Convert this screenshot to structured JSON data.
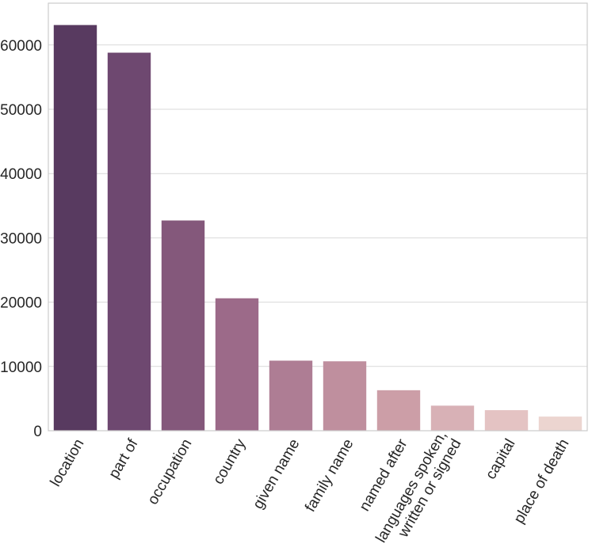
{
  "chart_data": {
    "type": "bar",
    "title": "",
    "xlabel": "",
    "ylabel": "",
    "categories": [
      [
        "location"
      ],
      [
        "part of"
      ],
      [
        "occupation"
      ],
      [
        "country"
      ],
      [
        "given name"
      ],
      [
        "family name"
      ],
      [
        "named after"
      ],
      [
        "languages spoken,",
        "written or signed"
      ],
      [
        "capital"
      ],
      [
        "place of death"
      ]
    ],
    "values": [
      63100,
      58800,
      32700,
      20600,
      10900,
      10800,
      6300,
      3900,
      3200,
      2200
    ],
    "colors": [
      "#583a60",
      "#6e4870",
      "#84587b",
      "#9c6a89",
      "#ae7d94",
      "#bf8f9e",
      "#cc9ea7",
      "#d8b1b6",
      "#e4c3c3",
      "#ecd5d0"
    ],
    "ylim": [
      0,
      66500
    ],
    "yticks": [
      0,
      10000,
      20000,
      30000,
      40000,
      50000,
      60000
    ],
    "grid": true
  }
}
